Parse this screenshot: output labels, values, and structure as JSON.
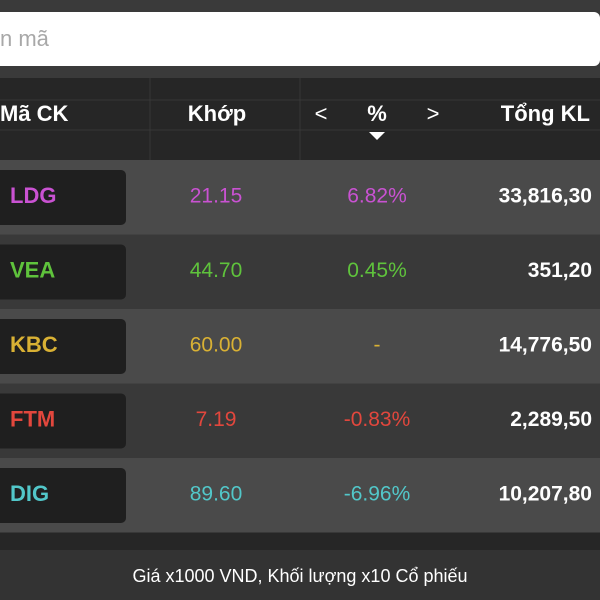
{
  "search": {
    "placeholder": "n mã"
  },
  "header": {
    "symbol": "Mã CK",
    "price": "Khớp",
    "prev": "<",
    "percent": "%",
    "next": ">",
    "volume": "Tổng KL"
  },
  "rows": [
    {
      "symbol": "LDG",
      "price": "21.15",
      "change": "6.82%",
      "volume": "33,816,30",
      "color": "#c952d2"
    },
    {
      "symbol": "VEA",
      "price": "44.70",
      "change": "0.45%",
      "volume": "351,20",
      "color": "#5fc33c"
    },
    {
      "symbol": "KBC",
      "price": "60.00",
      "change": "-",
      "volume": "14,776,50",
      "color": "#d9b134"
    },
    {
      "symbol": "FTM",
      "price": "7.19",
      "change": "-0.83%",
      "volume": "2,289,50",
      "color": "#e2473d"
    },
    {
      "symbol": "DIG",
      "price": "89.60",
      "change": "-6.96%",
      "volume": "10,207,80",
      "color": "#52c7c9"
    }
  ],
  "footer": "Giá x1000 VND, Khối lượng x10 Cổ phiếu"
}
